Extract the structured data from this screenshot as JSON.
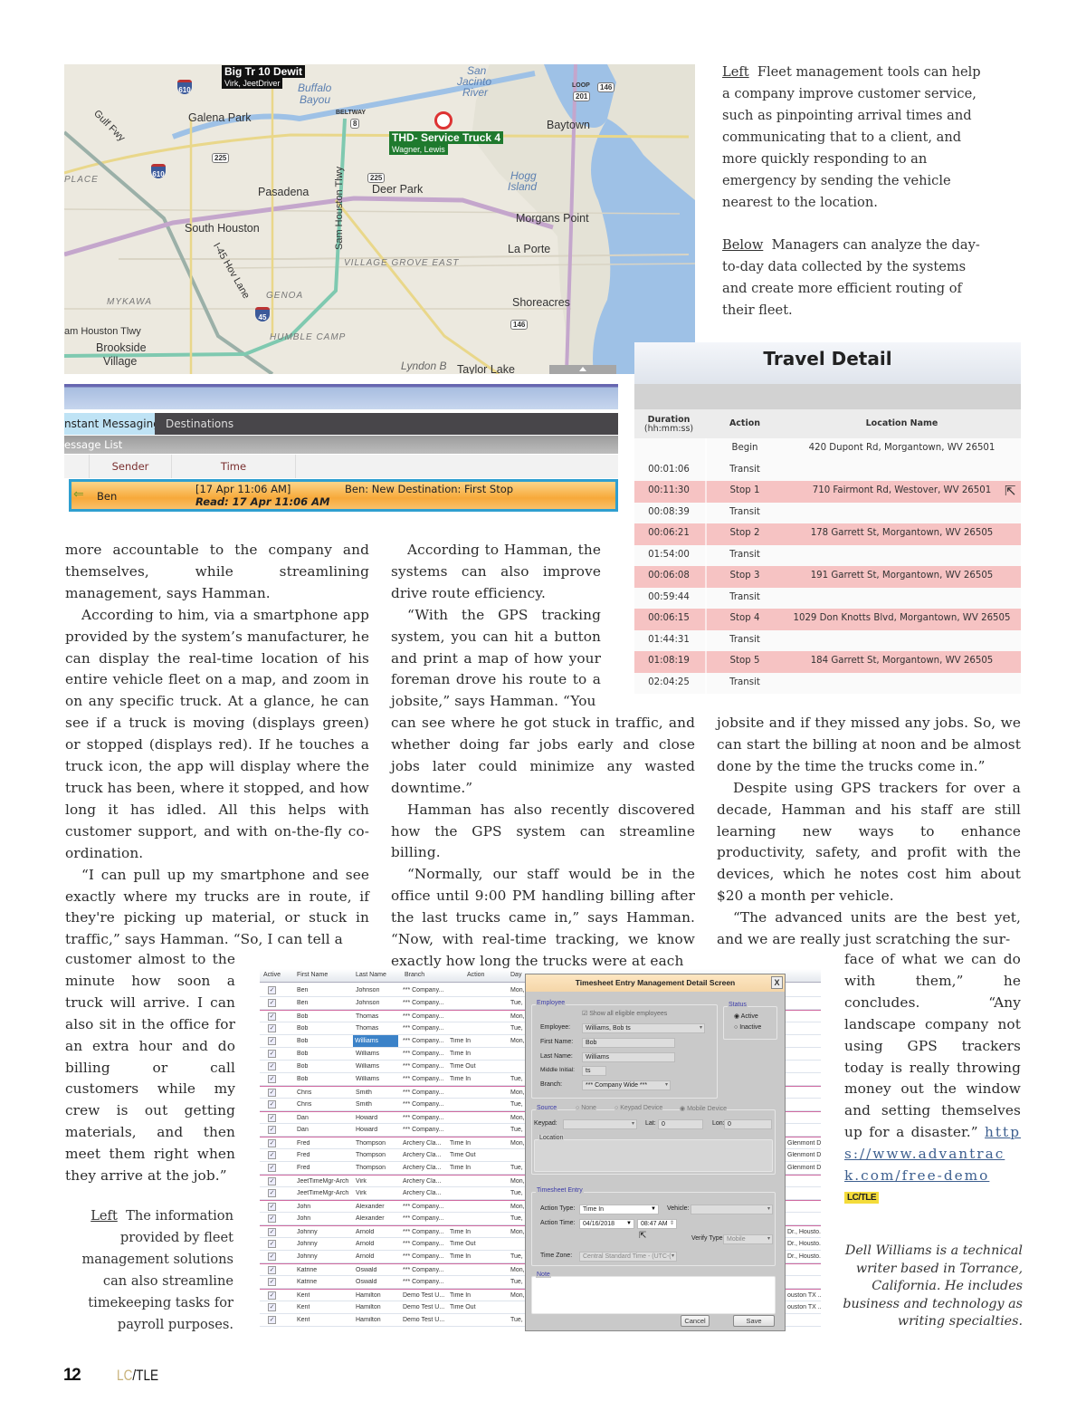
{
  "map": {
    "labels": {
      "galena_park": "Galena Park",
      "pasadena": "Pasadena",
      "deer_park": "Deer Park",
      "south_houston": "South Houston",
      "baytown": "Baytown",
      "morgans_point": "Morgans Point",
      "la_porte": "La Porte",
      "shoreacres": "Shoreacres",
      "brookside": "Brookside",
      "village": "Village",
      "am_houston": "am Houston Tlwy",
      "sam_houston": "Sam Houston Tlwy",
      "gulf_fwy": "Gulf Fwy",
      "hov_lane": "I-45 Hov Lane",
      "village_grove": "VILLAGE GROVE EAST",
      "genoa": "GENOA",
      "mykawa": "MYKAWA",
      "humble_camp": "HUMBLE CAMP",
      "place": "PLACE",
      "buffalo": "Buffalo",
      "bayou": "Bayou",
      "san": "San",
      "jacinto": "Jacinto",
      "river": "River",
      "hogg": "Hogg",
      "island": "Island",
      "lyndon": "Lyndon B",
      "taylor_lake": "Taylor Lake",
      "beltway": "BELTWAY",
      "loop": "LOOP"
    },
    "shields": {
      "s610a": "610",
      "s610b": "610",
      "s225a": "225",
      "s225b": "225",
      "s8": "8",
      "s201": "201",
      "s146a": "146",
      "s146b": "146",
      "s45": "45"
    },
    "vehicles": [
      {
        "name": "Big Tr 10 Dewit",
        "driver": "Virk, JeetDriver",
        "color": "#111111"
      },
      {
        "name": "THD- Service Truck 4",
        "driver": "Wagner, Lewis",
        "color": "#1f7a2e"
      }
    ]
  },
  "messaging": {
    "tabs": [
      "nstant Messaging",
      "Destinations"
    ],
    "list_title": "essage List",
    "columns": [
      "Sender",
      "Time"
    ],
    "row": {
      "sender": "Ben",
      "time": "[17 Apr 11:06 AM]",
      "read": "Read: 17 Apr 11:06 AM",
      "message": "Ben: New Destination: First Stop"
    },
    "highlight_color": "#f7a93a"
  },
  "caption_right": {
    "left_label": "Left",
    "left_text": "Fleet management tools can help a company improve customer service, such as pinpointing arrival times and communicating that to a client, and more quickly responding to an emergency by sending the vehicle nearest to the location.",
    "below_label": "Below",
    "below_text": "Managers can analyze the day-to-day data collected by the systems and create more efficient routing of their fleet."
  },
  "travel_detail": {
    "title": "Travel Detail",
    "columns": [
      "Duration",
      "(hh:mm:ss)",
      "Action",
      "Location Name"
    ],
    "rows": [
      {
        "duration": "",
        "action": "Begin",
        "location": "420 Dupont Rd, Morgantown, WV 26501"
      },
      {
        "duration": "00:01:06",
        "action": "Transit",
        "location": ""
      },
      {
        "duration": "00:11:30",
        "action": "Stop 1",
        "location": "710 Fairmont Rd, Westover, WV 26501"
      },
      {
        "duration": "00:08:39",
        "action": "Transit",
        "location": ""
      },
      {
        "duration": "00:06:21",
        "action": "Stop 2",
        "location": "178 Garrett St, Morgantown, WV 26505"
      },
      {
        "duration": "01:54:00",
        "action": "Transit",
        "location": ""
      },
      {
        "duration": "00:06:08",
        "action": "Stop 3",
        "location": "191 Garrett St, Morgantown, WV 26505"
      },
      {
        "duration": "00:59:44",
        "action": "Transit",
        "location": ""
      },
      {
        "duration": "00:06:15",
        "action": "Stop 4",
        "location": "1029 Don Knotts Blvd, Morgantown, WV 26505"
      },
      {
        "duration": "01:44:31",
        "action": "Transit",
        "location": ""
      },
      {
        "duration": "01:08:19",
        "action": "Stop 5",
        "location": "184 Garrett St, Morgantown, WV 26505"
      },
      {
        "duration": "02:04:25",
        "action": "Transit",
        "location": ""
      }
    ],
    "stop_color": "#f6c3c3"
  },
  "article": {
    "col1a": [
      "more accountable to the company and themselves, while streamlining management, says Hamman.",
      "According to him, via a smartphone app provided by the system’s manufacturer, he can display the real-time location of his entire vehicle fleet on a map, and zoom in on any specific truck. At a glance, he can see if a truck is moving (displays green) or stopped (displays red). If he touches a truck icon, the app will display where the truck has been, where it stopped, and how long it has idled. All this helps with customer support, and with on-the-fly co-ordination.",
      "“I can pull up my smartphone and see exactly where my trucks are in route, if they're picking up material, or stuck in traffic,” says Hamman. “So, I can tell a"
    ],
    "col1b": "customer almost to the minute how soon a truck will arrive. I can also sit in the office for an extra hour and do billing or call customers while my crew is out getting materials, and then meet them right when they arrive at the job.”",
    "col2a": [
      "According to Hamman, the systems can also improve drive route efficiency.",
      "“With the GPS tracking system, you can hit a button and print a map of how your foreman drove his route to a jobsite,” says Hamman. “You"
    ],
    "col2b": [
      "can see where he got stuck in traffic, and whether doing far jobs early and close jobs later could minimize any wasted downtime.”",
      "Hamman has also recently discovered how the GPS system can streamline billing.",
      "“Normally, our staff would be in the office until 9:00 PM handling billing after the last trucks came in,” says Hamman. “Now, with real-time tracking, we know exactly how long the trucks were at each"
    ],
    "col3a": [
      "jobsite and if they missed any jobs. So, we can start the billing at noon and be almost done by the time the trucks come in.”",
      "Despite using GPS trackers for over a decade, Hamman and his staff are still learning new ways to enhance productivity, safety, and profit with the devices, which he notes cost him about $20 a month per vehicle.",
      "“The advanced units are the best yet, and we are really just scratching the sur-"
    ],
    "col3b": "face of what we can do with them,” he concludes. “Any landscape company not using GPS trackers today is really throwing money out the window and setting themselves up for a disaster.”",
    "link": "https://www.advantrack.com/free-demo",
    "end_badge": "LC/TLE"
  },
  "caption_left": {
    "label": "Left",
    "text": "The information provided by fleet management solutions can also streamline timekeeping tasks for payroll purposes."
  },
  "bio": "Dell Williams is a technical writer based in Torrance, California. He includes business and technology as writing specialties.",
  "timesheet": {
    "columns": [
      "Active",
      "First Name",
      "Last Name",
      "Branch",
      "Action",
      "Day"
    ],
    "rows": [
      [
        "Ben",
        "Johnson",
        "*** Company...",
        "",
        "Mon,",
        ""
      ],
      [
        "Ben",
        "Johnson",
        "*** Company...",
        "",
        "Tue,",
        ""
      ],
      [
        "Bob",
        "Thomas",
        "*** Company...",
        "",
        "Mon,",
        ""
      ],
      [
        "Bob",
        "Thomas",
        "*** Company...",
        "",
        "Tue,",
        ""
      ],
      [
        "Bob",
        "Williams",
        "*** Company...",
        "Time In",
        "Mon,",
        ""
      ],
      [
        "Bob",
        "Williams",
        "*** Company...",
        "Time In",
        "",
        ""
      ],
      [
        "Bob",
        "Williams",
        "*** Company...",
        "Time Out",
        "",
        ""
      ],
      [
        "Bob",
        "Williams",
        "*** Company...",
        "Time In",
        "Tue,",
        ""
      ],
      [
        "Chris",
        "Smith",
        "*** Company...",
        "",
        "Mon,",
        ""
      ],
      [
        "Chris",
        "Smith",
        "*** Company...",
        "",
        "Tue,",
        ""
      ],
      [
        "Dan",
        "Howard",
        "*** Company...",
        "",
        "Mon,",
        ""
      ],
      [
        "Dan",
        "Howard",
        "*** Company...",
        "",
        "Tue,",
        ""
      ],
      [
        "Fred",
        "Thompson",
        "Archery Cla...",
        "Time In",
        "Mon,",
        "Glenmont Dr..."
      ],
      [
        "Fred",
        "Thompson",
        "Archery Cla...",
        "Time Out",
        "",
        "Glenmont Dr..."
      ],
      [
        "Fred",
        "Thompson",
        "Archery Cla...",
        "Time In",
        "Tue,",
        "Glenmont Dr..."
      ],
      [
        "JeetTimeMgr-Arch",
        "Virk",
        "Archery Cla...",
        "",
        "Mon,",
        ""
      ],
      [
        "JeetTimeMgr-Arch",
        "Virk",
        "Archery Cla...",
        "",
        "Tue,",
        ""
      ],
      [
        "John",
        "Alexander",
        "*** Company...",
        "",
        "Mon,",
        ""
      ],
      [
        "John",
        "Alexander",
        "*** Company...",
        "",
        "Tue,",
        ""
      ],
      [
        "Johnny",
        "Arnold",
        "*** Company...",
        "Time In",
        "Mon,",
        "Dr., Housto..."
      ],
      [
        "Johnny",
        "Arnold",
        "*** Company...",
        "Time Out",
        "",
        "Dr., Housto..."
      ],
      [
        "Johnny",
        "Arnold",
        "*** Company...",
        "Time In",
        "Tue,",
        "Dr., Housto..."
      ],
      [
        "Katrine",
        "Oswald",
        "*** Company...",
        "",
        "Mon,",
        ""
      ],
      [
        "Katrine",
        "Oswald",
        "*** Company...",
        "",
        "Tue,",
        ""
      ],
      [
        "Kent",
        "Hamilton",
        "Demo Test U...",
        "Time In",
        "Mon,",
        "ouston TX ..."
      ],
      [
        "Kent",
        "Hamilton",
        "Demo Test U...",
        "Time Out",
        "",
        "ouston TX ..."
      ],
      [
        "Kent",
        "Hamilton",
        "Demo Test U...",
        "",
        "Tue,",
        ""
      ]
    ],
    "selected_row": 4,
    "dialog": {
      "title": "Timesheet Entry Management Detail Screen",
      "close": "X",
      "employee_group": "Employee",
      "show_all": "Show all eligible employees",
      "employee_label": "Employee:",
      "employee_value": "Williams, Bob ts",
      "first_label": "First Name:",
      "first_value": "Bob",
      "last_label": "Last Name:",
      "last_value": "Williams",
      "mi_label": "Middle Initial:",
      "mi_value": "ts",
      "branch_label": "Branch:",
      "branch_value": "*** Company Wide ***",
      "status_group": "Status",
      "active": "Active",
      "inactive": "Inactive",
      "source_group": "Source",
      "src_none": "None",
      "src_keypad": "Keypad Device",
      "src_mobile": "Mobile Device",
      "keypad_label": "Keypad:",
      "lat_label": "Lat:",
      "lat_value": "0",
      "lon_label": "Lon:",
      "lon_value": "0",
      "location_group": "Location",
      "entry_group": "Timesheet Entry",
      "action_type_label": "Action Type:",
      "action_type_value": "Time In",
      "vehicle_label": "Vehicle:",
      "action_time_label": "Action Time:",
      "action_date": "04/16/2018",
      "action_time": "08:47 AM",
      "verify_label": "Verify Type:",
      "verify_value": "Mobile",
      "tz_label": "Time Zone:",
      "tz_value": "Central Standard Time - (UTC-(",
      "note_group": "Note",
      "cancel": "Cancel",
      "save": "Save"
    }
  },
  "footer": {
    "page": "12",
    "brand_a": "LC",
    "brand_b": "/TLE",
    "brand_color": "#c8b27a"
  }
}
